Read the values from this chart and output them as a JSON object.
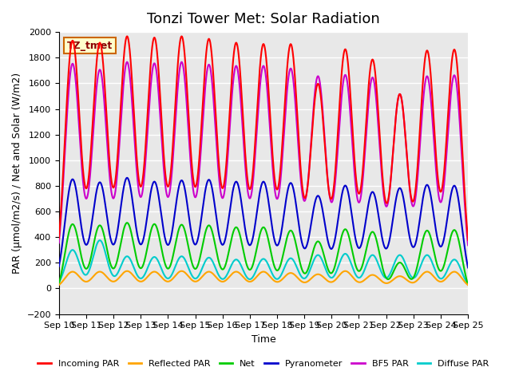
{
  "title": "Tonzi Tower Met: Solar Radiation",
  "xlabel": "Time",
  "ylabel": "PAR (μmol/m2/s) / Net and Solar (W/m2)",
  "ylim": [
    -200,
    2000
  ],
  "yticks": [
    -200,
    0,
    200,
    400,
    600,
    800,
    1000,
    1200,
    1400,
    1600,
    1800,
    2000
  ],
  "num_days": 15,
  "xtick_labels": [
    "Sep 10",
    "Sep 11",
    "Sep 12",
    "Sep 13",
    "Sep 14",
    "Sep 15",
    "Sep 16",
    "Sep 17",
    "Sep 18",
    "Sep 19",
    "Sep 20",
    "Sep 21",
    "Sep 22",
    "Sep 23",
    "Sep 24",
    "Sep 25"
  ],
  "legend_entries": [
    "Incoming PAR",
    "Reflected PAR",
    "Net",
    "Pyranometer",
    "BF5 PAR",
    "Diffuse PAR"
  ],
  "legend_colors": [
    "#ff0000",
    "#ffa500",
    "#00cc00",
    "#0000cc",
    "#cc00cc",
    "#00cccc"
  ],
  "box_label": "TZ_tmet",
  "box_facecolor": "#ffffcc",
  "box_edgecolor": "#cc6600",
  "background_color": "#e8e8e8",
  "grid_color": "#ffffff",
  "incoming_par_peaks": [
    1930.0,
    1910.0,
    1960.0,
    1950.0,
    1960.0,
    1940.0,
    1910.0,
    1900.0,
    1900.0,
    1590.0,
    1860.0,
    1780.0,
    1510.0,
    1850.0,
    1860.0
  ],
  "pyranometer_peaks": [
    850.0,
    825.0,
    860.0,
    830.0,
    840.0,
    845.0,
    830.0,
    830.0,
    820.0,
    720.0,
    800.0,
    750.0,
    780.0,
    805.0,
    800.0
  ],
  "bf5_par_peaks": [
    1750.0,
    1700.0,
    1760.0,
    1750.0,
    1760.0,
    1740.0,
    1730.0,
    1730.0,
    1710.0,
    1650.0,
    1660.0,
    1640.0,
    1510.0,
    1650.0,
    1660.0
  ],
  "net_peaks": [
    580.0,
    570.0,
    590.0,
    580.0,
    575.0,
    570.0,
    555.0,
    555.0,
    530.0,
    445.0,
    540.0,
    520.0,
    280.0,
    530.0,
    535.0
  ],
  "reflected_peaks": [
    130.0,
    130.0,
    135.0,
    130.0,
    135.0,
    130.0,
    130.0,
    130.0,
    120.0,
    110.0,
    135.0,
    105.0,
    95.0,
    130.0,
    130.0
  ],
  "diffuse_peaks": [
    300.0,
    375.0,
    250.0,
    245.0,
    250.0,
    240.0,
    225.0,
    230.0,
    235.0,
    260.0,
    270.0,
    260.0,
    260.0,
    260.0,
    225.0
  ],
  "net_neg": -80.0,
  "line_width": 1.5,
  "title_fontsize": 13,
  "label_fontsize": 9,
  "tick_fontsize": 8
}
